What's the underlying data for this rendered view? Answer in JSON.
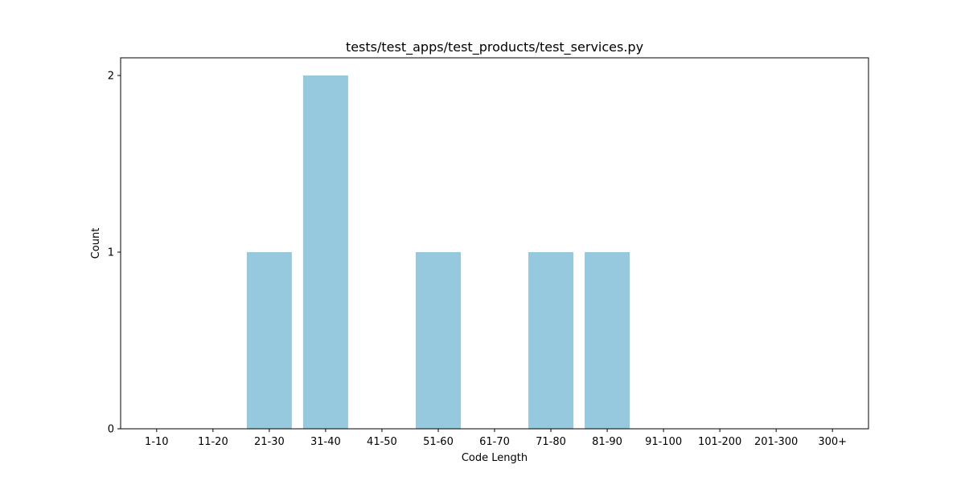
{
  "chart_data": {
    "type": "bar",
    "title": "tests/test_apps/test_products/test_services.py",
    "xlabel": "Code Length",
    "ylabel": "Count",
    "categories": [
      "1-10",
      "11-20",
      "21-30",
      "31-40",
      "41-50",
      "51-60",
      "61-70",
      "71-80",
      "81-90",
      "91-100",
      "101-200",
      "201-300",
      "300+"
    ],
    "values": [
      0,
      0,
      1,
      2,
      0,
      1,
      0,
      1,
      1,
      0,
      0,
      0,
      0
    ],
    "ylim": [
      0,
      2.1
    ],
    "yticks": [
      0,
      1,
      2
    ],
    "bar_color": "#96c9dd",
    "grid": false,
    "legend": "none"
  }
}
